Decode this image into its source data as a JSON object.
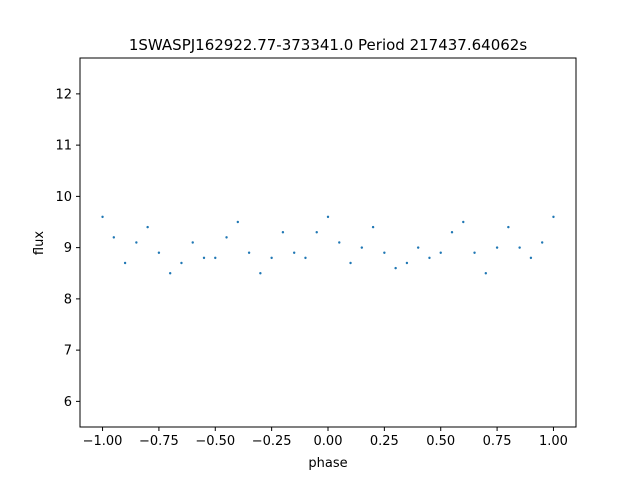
{
  "chart_data": {
    "type": "scatter",
    "title": "1SWASPJ162922.77-373341.0 Period 217437.64062s",
    "xlabel": "phase",
    "ylabel": "flux",
    "xlim": [
      -1.1,
      1.1
    ],
    "ylim": [
      5.5,
      12.7
    ],
    "x_ticks": [
      -1.0,
      -0.75,
      -0.5,
      -0.25,
      0.0,
      0.25,
      0.5,
      0.75,
      1.0
    ],
    "x_tick_labels": [
      "−1.00",
      "−0.75",
      "−0.50",
      "−0.25",
      "0.00",
      "0.25",
      "0.50",
      "0.75",
      "1.00"
    ],
    "y_ticks": [
      6,
      7,
      8,
      9,
      10,
      11,
      12
    ],
    "y_tick_labels": [
      "6",
      "7",
      "8",
      "9",
      "10",
      "11",
      "12"
    ],
    "grid": false,
    "marker_color": "#1f77b4",
    "series": [
      {
        "x": [
          -1.0,
          -0.95,
          -0.9,
          -0.85,
          -0.8,
          -0.75,
          -0.7,
          -0.65,
          -0.6,
          -0.55,
          -0.5,
          -0.45,
          -0.4,
          -0.35,
          -0.3,
          -0.25,
          -0.2,
          -0.15,
          -0.1,
          -0.05,
          0.0,
          0.05,
          0.1,
          0.15,
          0.2,
          0.25,
          0.3,
          0.35,
          0.4,
          0.45,
          0.5,
          0.55,
          0.6,
          0.65,
          0.7,
          0.75,
          0.8,
          0.85,
          0.9,
          0.95,
          1.0
        ],
        "y": [
          9.6,
          9.2,
          8.7,
          9.1,
          9.4,
          8.9,
          8.5,
          8.7,
          9.1,
          8.8,
          8.8,
          9.2,
          9.5,
          8.9,
          8.5,
          8.8,
          9.3,
          8.9,
          8.8,
          9.3,
          9.6,
          9.1,
          8.7,
          9.0,
          9.4,
          8.9,
          8.6,
          8.7,
          9.0,
          8.8,
          8.9,
          9.3,
          9.5,
          8.9,
          8.5,
          9.0,
          9.4,
          9.0,
          8.8,
          9.1,
          9.6
        ]
      }
    ]
  }
}
